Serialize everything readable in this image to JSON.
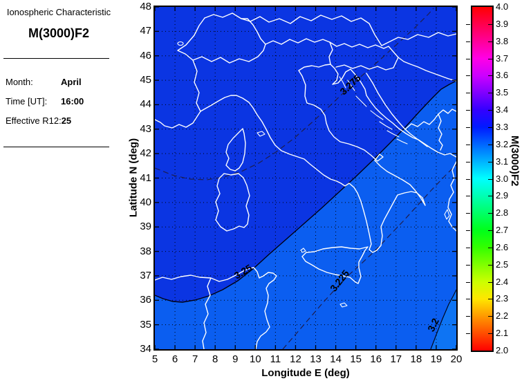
{
  "panel": {
    "title": "Ionospheric Characteristic",
    "characteristic": "M(3000)F2",
    "fields": [
      {
        "label": "Month:",
        "value": "April"
      },
      {
        "label": "Time [UT]:",
        "value": "16:00"
      },
      {
        "label": "Effective R12:",
        "value": "25"
      }
    ]
  },
  "chart_data": {
    "type": "heatmap",
    "subtype": "filled-contour-geographic-map",
    "title": "M(3000)F2",
    "region_shown": "Italy / central Mediterranean coastlines",
    "xlabel": "Longitude E (deg)",
    "ylabel": "Latitude N (deg)",
    "xlim": [
      5,
      20
    ],
    "ylim": [
      34,
      48
    ],
    "x_ticks": [
      5,
      6,
      7,
      8,
      9,
      10,
      11,
      12,
      13,
      14,
      15,
      16,
      17,
      18,
      19,
      20
    ],
    "y_ticks": [
      34,
      35,
      36,
      37,
      38,
      39,
      40,
      41,
      42,
      43,
      44,
      45,
      46,
      47,
      48
    ],
    "grid": "dotted",
    "contours": [
      {
        "value": 3.275,
        "label": "3.275",
        "style": "dashed"
      },
      {
        "value": 3.25,
        "label": "3.25",
        "style": "solid"
      },
      {
        "value": 3.225,
        "label": "3.225",
        "style": "dashed"
      },
      {
        "value": 3.2,
        "label": "3.2",
        "style": "solid"
      }
    ],
    "filled_regions": [
      {
        "range": [
          3.25,
          3.3
        ],
        "color": "#0b35e2",
        "location": "northwest of the 3.25 contour"
      },
      {
        "range": [
          3.2,
          3.25
        ],
        "color": "#0b5ef0",
        "location": "southeast of the 3.25 contour"
      },
      {
        "range": [
          3.15,
          3.2
        ],
        "color": "#0e74f3",
        "location": "far southeast corner beyond the 3.2 contour"
      }
    ],
    "value_gradient": "M(3000)F2 decreases from northwest (>3.25) to southeast (<3.2)",
    "colorbar": {
      "label": "M(3000)F2",
      "min": 2.0,
      "max": 4.0,
      "colormap": "hsv",
      "ticks": [
        "4.0",
        "3.9",
        "3.8",
        "3.7",
        "3.6",
        "3.5",
        "3.4",
        "3.3",
        "3.2",
        "3.1",
        "3.0",
        "2.9",
        "2.8",
        "2.7",
        "2.6",
        "2.5",
        "2.4",
        "2.3",
        "2.2",
        "2.1",
        "2.0"
      ],
      "stops": [
        {
          "v": 4.0,
          "c": "#ff0000"
        },
        {
          "v": 3.9,
          "c": "#ff004d"
        },
        {
          "v": 3.8,
          "c": "#ff0099"
        },
        {
          "v": 3.7,
          "c": "#ff00e6"
        },
        {
          "v": 3.6,
          "c": "#cc00ff"
        },
        {
          "v": 3.5,
          "c": "#8000ff"
        },
        {
          "v": 3.4,
          "c": "#3300ff"
        },
        {
          "v": 3.3,
          "c": "#001aff"
        },
        {
          "v": 3.2,
          "c": "#0066ff"
        },
        {
          "v": 3.1,
          "c": "#00b3ff"
        },
        {
          "v": 3.0,
          "c": "#00ffff"
        },
        {
          "v": 2.9,
          "c": "#00ffb3"
        },
        {
          "v": 2.8,
          "c": "#00ff66"
        },
        {
          "v": 2.7,
          "c": "#00ff1a"
        },
        {
          "v": 2.6,
          "c": "#33ff00"
        },
        {
          "v": 2.5,
          "c": "#80ff00"
        },
        {
          "v": 2.4,
          "c": "#ccff00"
        },
        {
          "v": 2.3,
          "c": "#ffe600"
        },
        {
          "v": 2.2,
          "c": "#ff9900"
        },
        {
          "v": 2.1,
          "c": "#ff4d00"
        },
        {
          "v": 2.0,
          "c": "#ff0000"
        }
      ]
    }
  },
  "colors": {
    "background": "#ffffff",
    "coastline": "#ffffff",
    "contour_solid": "#000010",
    "contour_dashed": "#1e1e4e",
    "region_high": "#0b35e2",
    "region_mid": "#0b5ef0",
    "region_low": "#0e74f3",
    "frame": "#000000"
  }
}
